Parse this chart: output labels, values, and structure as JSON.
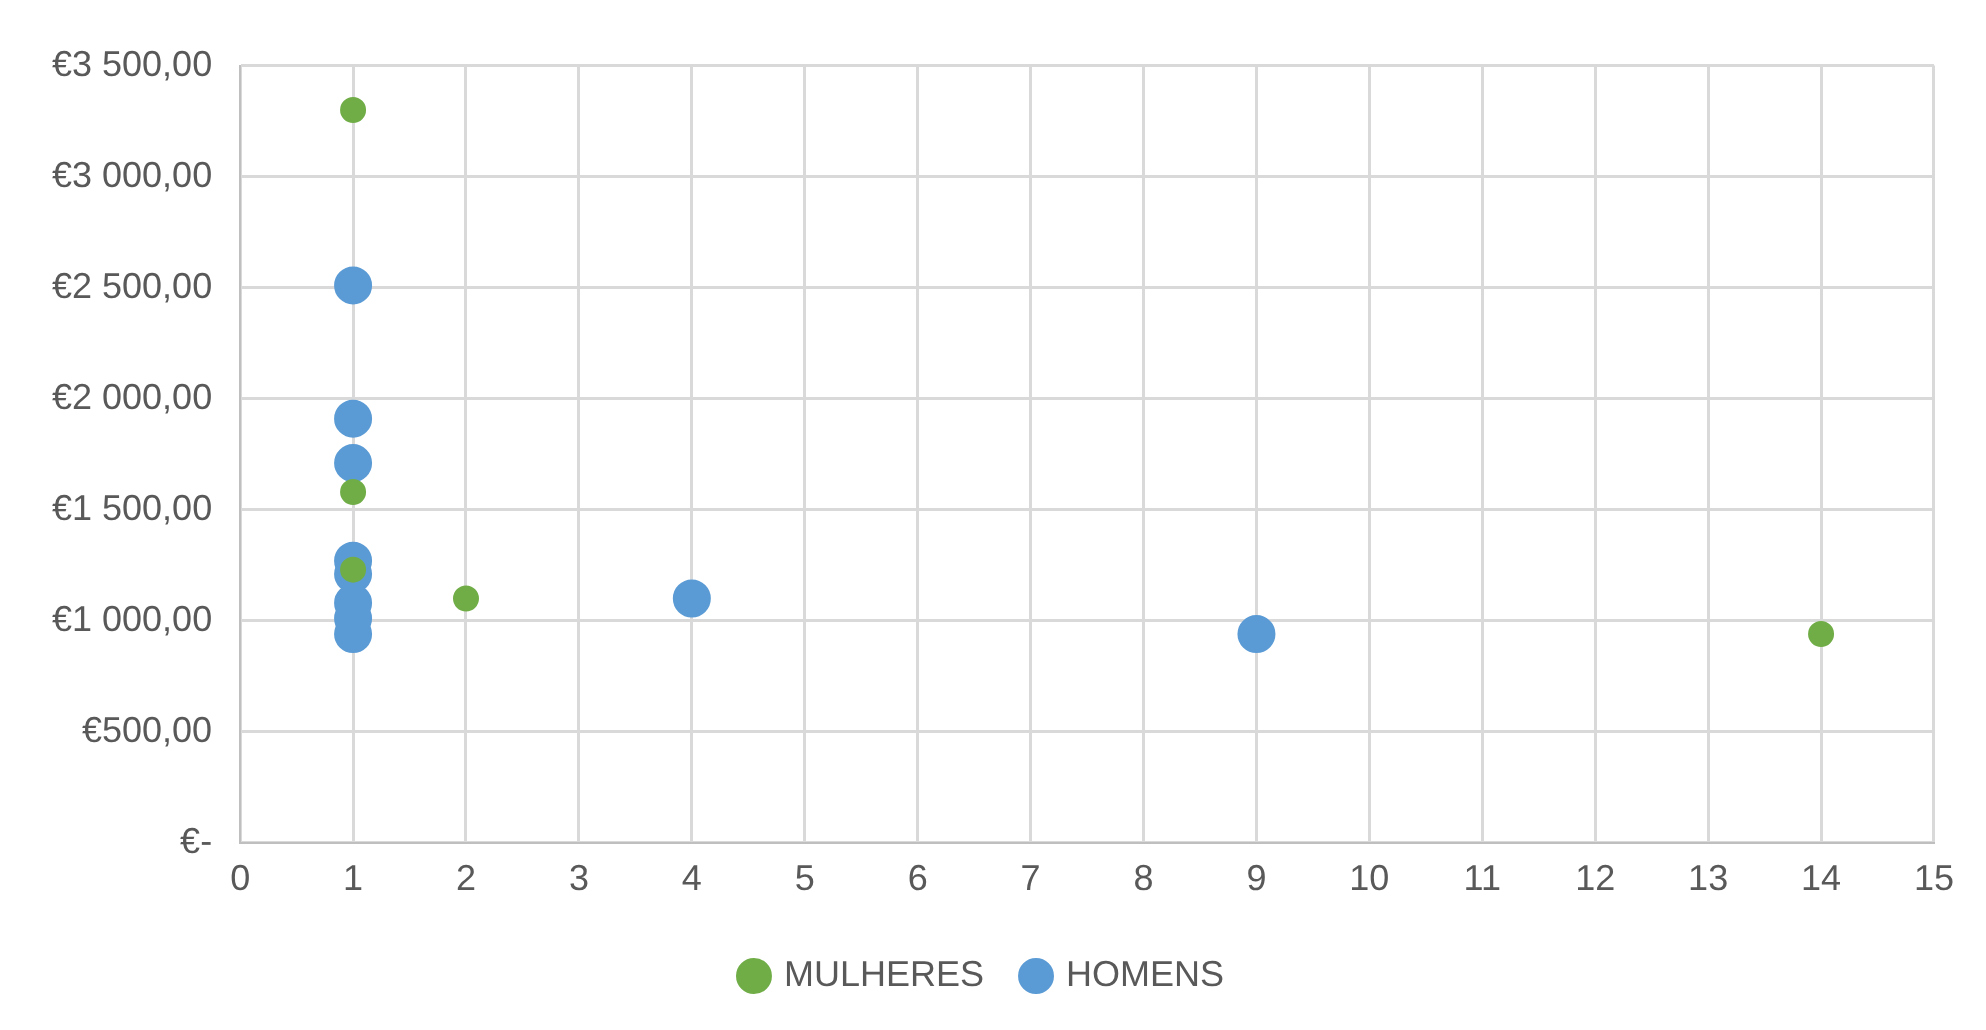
{
  "chart_data": {
    "type": "scatter",
    "series": [
      {
        "name": "MULHERES",
        "color": "#70ad47",
        "x": [
          1,
          1,
          1,
          2,
          14
        ],
        "values": [
          3300,
          1580,
          1230,
          1100,
          940
        ]
      },
      {
        "name": "HOMENS",
        "color": "#5b9bd5",
        "x": [
          1,
          1,
          1,
          1,
          1,
          1,
          1,
          1,
          4,
          9
        ],
        "values": [
          2510,
          1910,
          1710,
          1270,
          1210,
          1080,
          1010,
          940,
          1100,
          940
        ]
      }
    ],
    "xlim": [
      0,
      15
    ],
    "xticks": [
      0,
      1,
      2,
      3,
      4,
      5,
      6,
      7,
      8,
      9,
      10,
      11,
      12,
      13,
      14,
      15
    ],
    "ylim": [
      0,
      3500
    ],
    "yticks": [
      {
        "value": 0,
        "label": "€-"
      },
      {
        "value": 500,
        "label": "€500,00"
      },
      {
        "value": 1000,
        "label": "€1 000,00"
      },
      {
        "value": 1500,
        "label": "€1 500,00"
      },
      {
        "value": 2000,
        "label": "€2 000,00"
      },
      {
        "value": 2500,
        "label": "€2 500,00"
      },
      {
        "value": 3000,
        "label": "€3 000,00"
      },
      {
        "value": 3500,
        "label": "€3 500,00"
      }
    ],
    "grid": true,
    "legend": "bottom",
    "marker": "circle"
  }
}
